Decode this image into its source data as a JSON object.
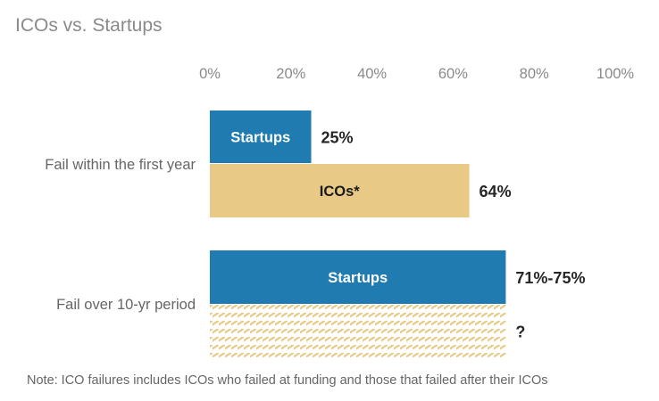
{
  "title": "ICOs vs. Startups",
  "note": "Note: ICO failures includes ICOs who failed at funding and those that failed after their ICOs",
  "colors": {
    "startups": "#1f7bb0",
    "icos": "#e8ca86",
    "hatch": "#e8ca86",
    "text_dark": "#262626",
    "text_gray": "#8a8a8a"
  },
  "chart_data": {
    "type": "bar",
    "orientation": "horizontal",
    "title": "ICOs vs. Startups",
    "xlim": [
      0,
      100
    ],
    "xticks": [
      0,
      20,
      40,
      60,
      80,
      100
    ],
    "tick_labels": [
      "0%",
      "20%",
      "40%",
      "60%",
      "80%",
      "100%"
    ],
    "groups": [
      {
        "category": "Fail within the first year",
        "bars": [
          {
            "name": "Startups",
            "label": "Startups",
            "value": 25,
            "value_label": "25%",
            "style": "solid",
            "color": "#1f7bb0",
            "label_color": "#ffffff"
          },
          {
            "name": "ICOs",
            "label": "ICOs*",
            "value": 64,
            "value_label": "64%",
            "style": "solid",
            "color": "#e8ca86",
            "label_color": "#1a1a1a"
          }
        ]
      },
      {
        "category": "Fail over 10-yr period",
        "bars": [
          {
            "name": "Startups",
            "label": "Startups",
            "value": 73,
            "value_label": "71%-75%",
            "style": "solid",
            "color": "#1f7bb0",
            "label_color": "#ffffff"
          },
          {
            "name": "ICOs",
            "label": "",
            "value": 73,
            "value_label": "?",
            "style": "hatched",
            "color": "#e8ca86",
            "label_color": "#1a1a1a"
          }
        ]
      }
    ]
  }
}
